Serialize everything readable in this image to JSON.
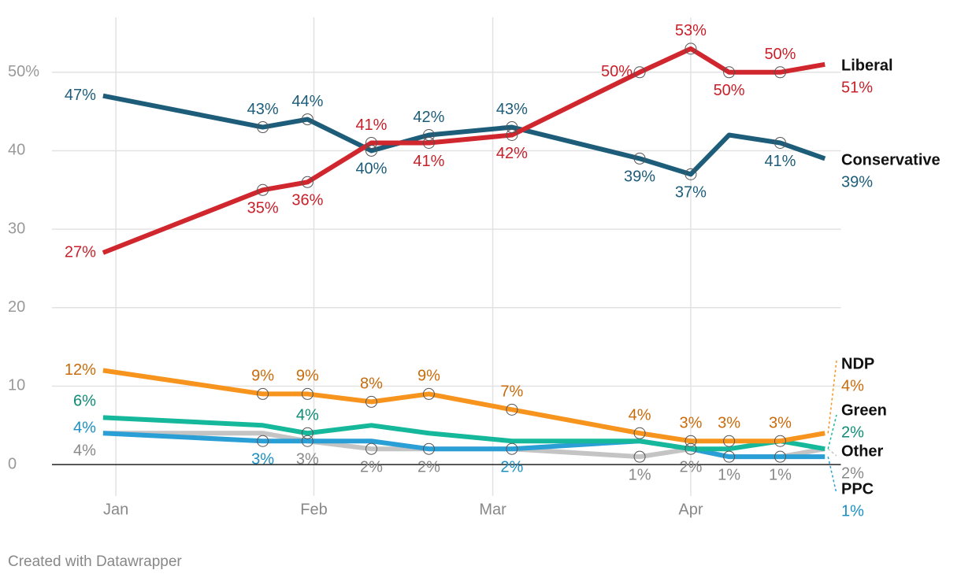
{
  "chart_data": {
    "type": "line",
    "x": [
      -2,
      23,
      30,
      40,
      49,
      62,
      82,
      90,
      96,
      104,
      111
    ],
    "xlim": [
      -10,
      113.5
    ],
    "xticks": [
      {
        "value": 0,
        "label": "Jan"
      },
      {
        "value": 31,
        "label": "Feb"
      },
      {
        "value": 59,
        "label": "Mar"
      },
      {
        "value": 90,
        "label": "Apr"
      }
    ],
    "ylim": [
      -4,
      57
    ],
    "yticks": [
      {
        "value": 50,
        "label": "50%"
      },
      40,
      30,
      20,
      10,
      0
    ],
    "grid": true,
    "series": [
      {
        "name": "Other",
        "color": "#c4c4c4",
        "label_color": "#888888",
        "values": [
          4,
          4,
          3,
          2,
          2,
          2,
          1,
          2,
          1,
          1,
          2
        ],
        "value_labels": [
          "4%",
          null,
          "3%",
          "2%",
          "2%",
          null,
          "1%",
          "2%",
          "1%",
          "1%",
          "2%"
        ]
      },
      {
        "name": "PPC",
        "color": "#2a9fd6",
        "label_color": "#1b8fc2",
        "values": [
          4,
          3,
          3,
          3,
          2,
          2,
          3,
          2,
          1,
          1,
          1
        ],
        "value_labels": [
          "4%",
          "3%",
          null,
          null,
          null,
          "2%",
          null,
          null,
          null,
          null,
          "1%"
        ]
      },
      {
        "name": "Green",
        "color": "#15b89a",
        "label_color": "#0f8b75",
        "values": [
          6,
          5,
          4,
          5,
          4,
          3,
          3,
          2,
          2,
          3,
          2
        ],
        "value_labels": [
          "6%",
          null,
          "4%",
          null,
          null,
          null,
          null,
          null,
          null,
          null,
          "2%"
        ]
      },
      {
        "name": "NDP",
        "color": "#f7941d",
        "label_color": "#c96b0b",
        "values": [
          12,
          9,
          9,
          8,
          9,
          7,
          4,
          3,
          3,
          3,
          4
        ],
        "value_labels": [
          "12%",
          "9%",
          "9%",
          "8%",
          "9%",
          "7%",
          "4%",
          "3%",
          "3%",
          "3%",
          "4%"
        ]
      },
      {
        "name": "Conservative",
        "color": "#1d5d7a",
        "label_color": "#1d5d7a",
        "values": [
          47,
          43,
          44,
          40,
          42,
          43,
          39,
          37,
          42,
          41,
          39
        ],
        "value_labels": [
          "47%",
          "43%",
          "44%",
          "40%",
          "42%",
          "43%",
          "39%",
          "37%",
          null,
          "41%",
          "39%"
        ]
      },
      {
        "name": "Liberal",
        "color": "#d0262d",
        "label_color": "#c8202a",
        "values": [
          27,
          35,
          36,
          41,
          41,
          42,
          50,
          53,
          50,
          50,
          51
        ],
        "value_labels": [
          "27%",
          "35%",
          "36%",
          "41%",
          "41%",
          "42%",
          "50%",
          "53%",
          "50%",
          "50%",
          "51%"
        ]
      }
    ],
    "footer": "Created with Datawrapper"
  }
}
